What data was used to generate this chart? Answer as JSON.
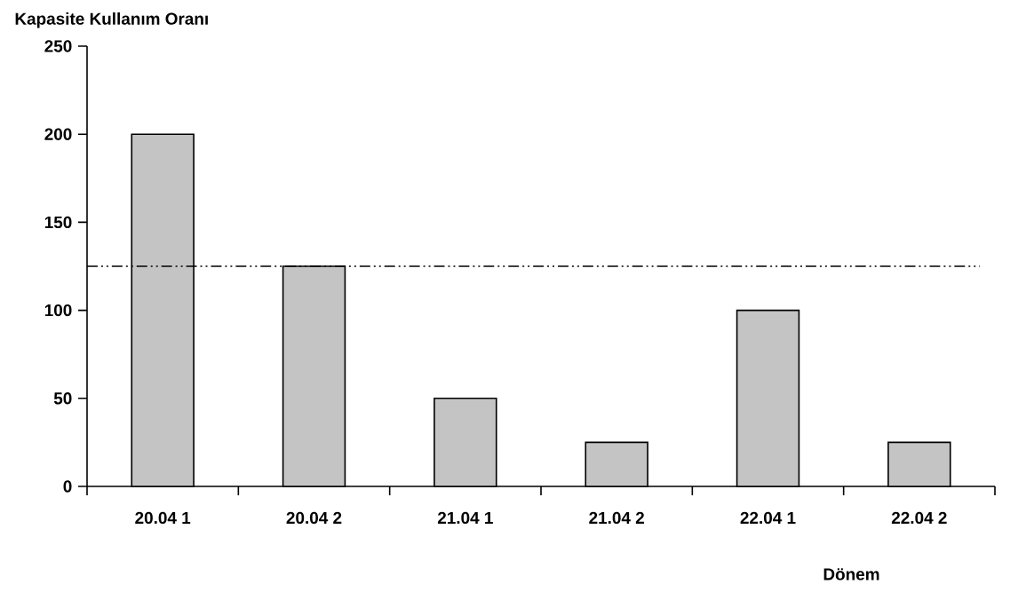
{
  "chart_data": {
    "type": "bar",
    "ylabel": "Kapasite Kullanım Oranı",
    "xlabel": "Dönem",
    "categories": [
      "20.04 1",
      "20.04 2",
      "21.04 1",
      "21.04 2",
      "22.04 1",
      "22.04 2"
    ],
    "values": [
      200,
      125,
      50,
      25,
      100,
      25
    ],
    "color": "#c4c4c4",
    "ylim": [
      0,
      250
    ],
    "yticks": [
      0,
      50,
      100,
      150,
      200,
      250
    ],
    "ref_lines": [
      {
        "axis": "y",
        "value": 125,
        "color": "#000000",
        "line_style": "dashdotdot"
      }
    ],
    "grid": false
  }
}
